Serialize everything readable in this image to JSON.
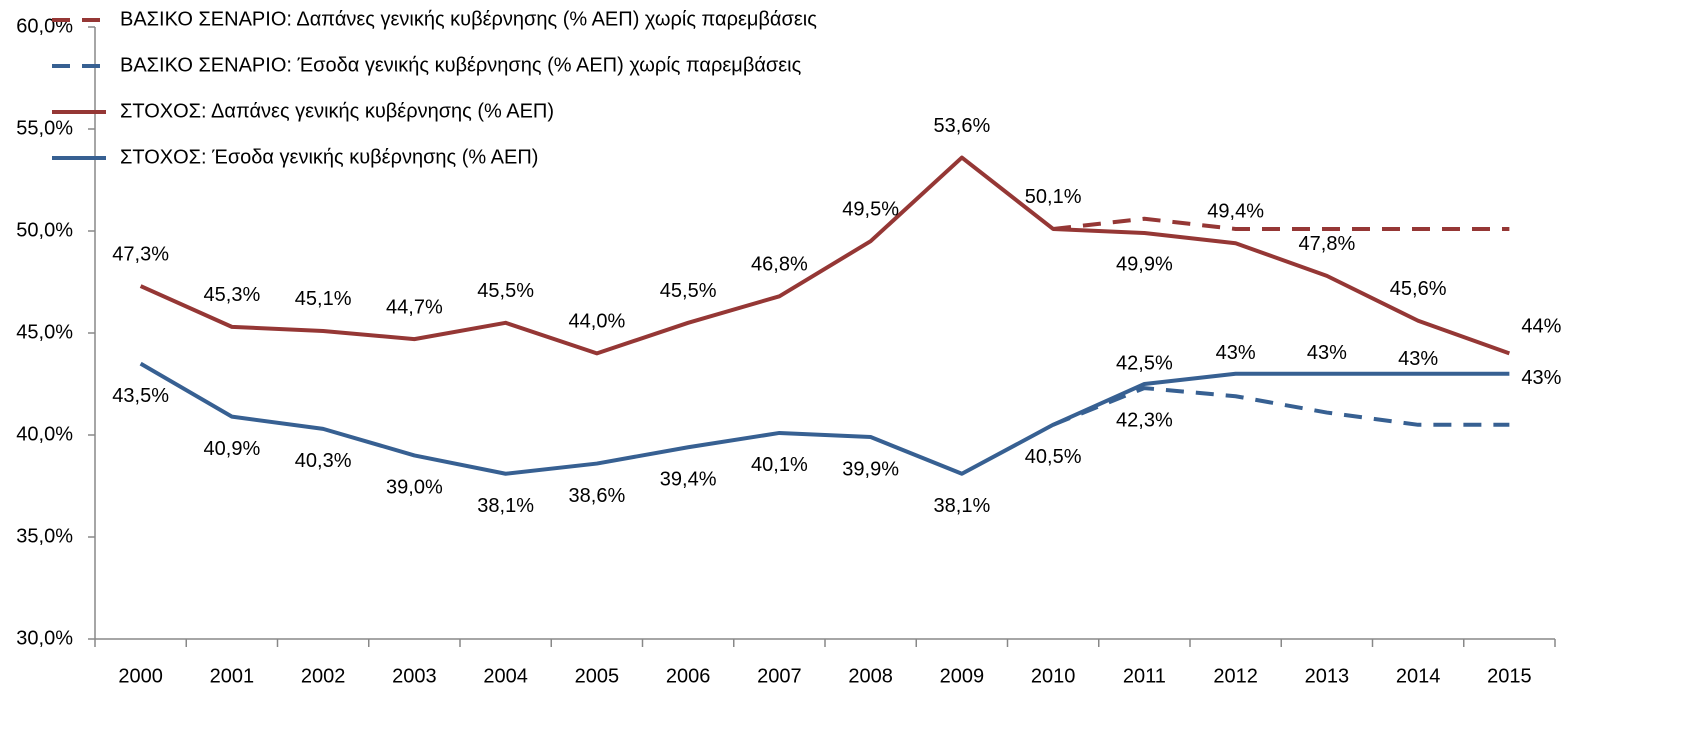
{
  "chart_data": {
    "type": "line",
    "categories": [
      "2000",
      "2001",
      "2002",
      "2003",
      "2004",
      "2005",
      "2006",
      "2007",
      "2008",
      "2009",
      "2010",
      "2011",
      "2012",
      "2013",
      "2014",
      "2015"
    ],
    "series": [
      {
        "name": "ΒΑΣΙΚΟ ΣΕΝΑΡΙΟ: Δαπάνες γενικής κυβέρνησης (% ΑΕΠ) χωρίς παρεμβάσεις",
        "color": "#953735",
        "dashed": true,
        "values": [
          null,
          null,
          null,
          null,
          null,
          null,
          null,
          null,
          null,
          null,
          50.1,
          50.6,
          50.1,
          50.1,
          50.1,
          50.1
        ]
      },
      {
        "name": "ΒΑΣΙΚΟ ΣΕΝΑΡΙΟ: Έσοδα γενικής κυβέρνησης (% ΑΕΠ) χωρίς παρεμβάσεις",
        "color": "#376092",
        "dashed": true,
        "values": [
          null,
          null,
          null,
          null,
          null,
          null,
          null,
          null,
          null,
          null,
          40.5,
          42.3,
          41.9,
          41.1,
          40.5,
          40.5
        ],
        "value_labels": [
          null,
          null,
          null,
          null,
          null,
          null,
          null,
          null,
          null,
          null,
          null,
          "42,3%",
          null,
          null,
          null,
          null
        ]
      },
      {
        "name": "ΣΤΟΧΟΣ: Δαπάνες γενικής κυβέρνησης (% ΑΕΠ)",
        "color": "#953735",
        "dashed": false,
        "values": [
          47.3,
          45.3,
          45.1,
          44.7,
          45.5,
          44.0,
          45.5,
          46.8,
          49.5,
          53.6,
          50.1,
          49.9,
          49.4,
          47.8,
          45.6,
          44
        ],
        "value_labels": [
          "47,3%",
          "45,3%",
          "45,1%",
          "44,7%",
          "45,5%",
          "44,0%",
          "45,5%",
          "46,8%",
          "49,5%",
          "53,6%",
          "50,1%",
          "49,9%",
          "49,4%",
          "47,8%",
          "45,6%",
          "44%"
        ]
      },
      {
        "name": "ΣΤΟΧΟΣ: Έσοδα γενικής κυβέρνησης (% ΑΕΠ)",
        "color": "#376092",
        "dashed": false,
        "values": [
          43.5,
          40.9,
          40.3,
          39.0,
          38.1,
          38.6,
          39.4,
          40.1,
          39.9,
          38.1,
          40.5,
          42.5,
          43,
          43,
          43,
          43
        ],
        "value_labels": [
          "43,5%",
          "40,9%",
          "40,3%",
          "39,0%",
          "38,1%",
          "38,6%",
          "39,4%",
          "40,1%",
          "39,9%",
          "38,1%",
          "40,5%",
          "42,5%",
          "43%",
          "43%",
          "43%",
          "43%"
        ]
      }
    ],
    "ylim": [
      30,
      60
    ],
    "yticks": [
      {
        "value": 30,
        "label": "30,0%"
      },
      {
        "value": 35,
        "label": "35,0%"
      },
      {
        "value": 40,
        "label": "40,0%"
      },
      {
        "value": 45,
        "label": "45,0%"
      },
      {
        "value": 50,
        "label": "50,0%"
      },
      {
        "value": 55,
        "label": "55,0%"
      },
      {
        "value": 60,
        "label": "60,0%"
      }
    ],
    "grid": false,
    "legend": "upper left"
  }
}
